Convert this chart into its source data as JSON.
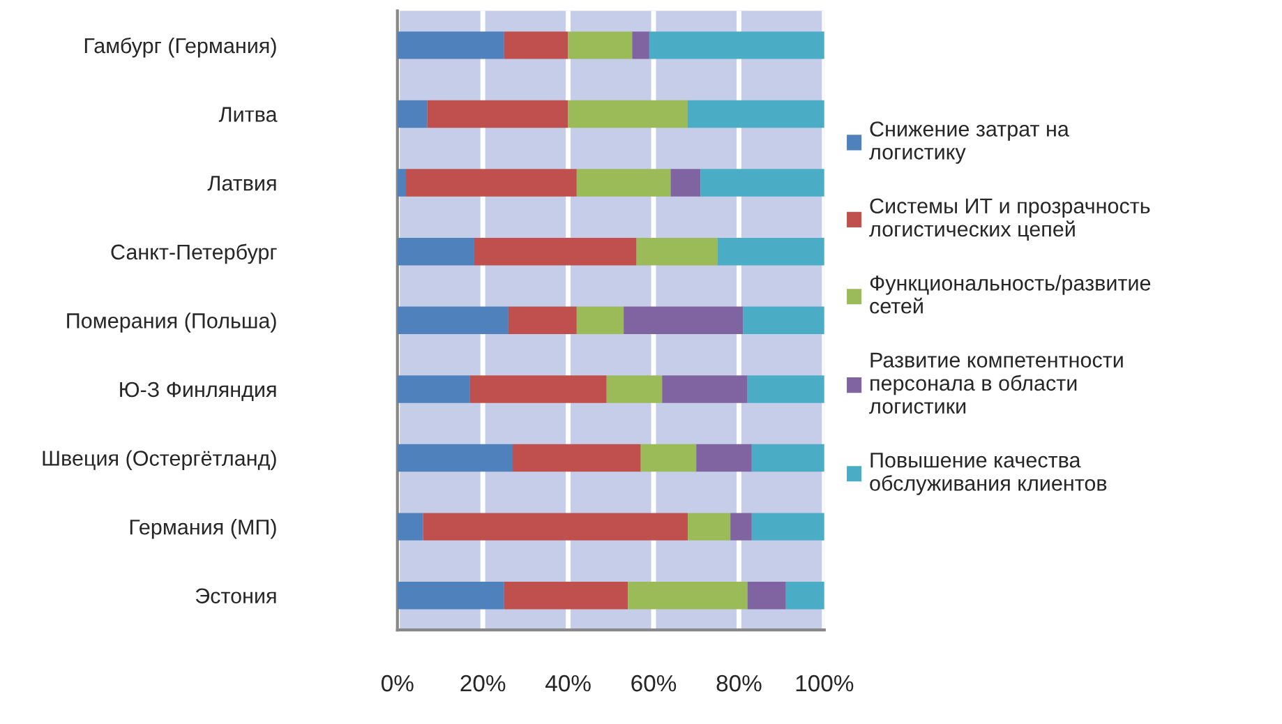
{
  "chart_data": {
    "type": "bar",
    "orientation": "horizontal",
    "stacked": true,
    "categories": [
      "Гамбург (Германия)",
      "Литва",
      "Латвия",
      "Санкт-Петербург",
      "Померания (Польша)",
      "Ю-З Финляндия",
      "Швеция (Остергётланд)",
      "Германия (МП)",
      "Эстония"
    ],
    "series": [
      {
        "name": "Снижение затрат на\nлогистику",
        "color": "#4f81bd",
        "values": [
          25,
          7,
          2,
          18,
          26,
          17,
          27,
          6,
          25
        ]
      },
      {
        "name": "Системы ИТ и прозрачность\nлогистических цепей",
        "color": "#c0504d",
        "values": [
          15,
          33,
          40,
          38,
          16,
          32,
          30,
          62,
          29
        ]
      },
      {
        "name": "Функциональность/развитие\nсетей",
        "color": "#9bbb59",
        "values": [
          15,
          28,
          22,
          19,
          11,
          13,
          13,
          10,
          28
        ]
      },
      {
        "name": "Развитие компетентности\nперсонала в области\nлогистики",
        "color": "#8064a2",
        "values": [
          4,
          0,
          7,
          0,
          28,
          20,
          13,
          5,
          9
        ]
      },
      {
        "name": "Повышение качества\nобслуживания клиентов",
        "color": "#4bacc6",
        "values": [
          41,
          32,
          29,
          25,
          19,
          18,
          17,
          17,
          9
        ]
      }
    ],
    "xlim": [
      0,
      100
    ],
    "xticks": [
      {
        "value": 0,
        "label": "0%"
      },
      {
        "value": 20,
        "label": "20%"
      },
      {
        "value": 40,
        "label": "40%"
      },
      {
        "value": 60,
        "label": "60%"
      },
      {
        "value": 80,
        "label": "80%"
      },
      {
        "value": 100,
        "label": "100%"
      }
    ],
    "grid": "x",
    "legend": "right"
  }
}
